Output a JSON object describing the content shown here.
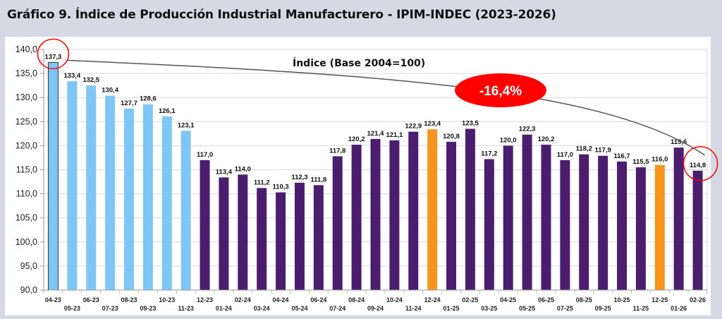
{
  "header": {
    "title": "Gráfico 9. Índice de Producción Industrial Manufacturero - IPIM-INDEC (2023-2026)"
  },
  "chart_data": {
    "type": "bar",
    "title": "Gráfico 9. Índice de Producción Industrial Manufacturero - IPIM-INDEC (2023-2026)",
    "subtitle": "Índice (Base 2004=100)",
    "xlabel": "",
    "ylabel": "",
    "ylim": [
      90,
      140
    ],
    "ytick_step": 5,
    "yticks": [
      "90,0",
      "95,0",
      "100,0",
      "105,0",
      "110,0",
      "115,0",
      "120,0",
      "125,0",
      "130,0",
      "135,0",
      "140,0"
    ],
    "grid": true,
    "categories": [
      "04-23",
      "05-23",
      "06-23",
      "07-23",
      "08-23",
      "09-23",
      "10-23",
      "11-23",
      "12-23",
      "01-24",
      "02-24",
      "03-24",
      "04-24",
      "05-24",
      "06-24",
      "07-24",
      "08-24",
      "09-24",
      "10-24",
      "11-24",
      "12-24",
      "01-25",
      "02-25",
      "03-25",
      "04-25",
      "05-25",
      "06-25",
      "07-25",
      "08-25",
      "09-25",
      "10-25",
      "11-25",
      "12-25",
      "01-26",
      "02-26"
    ],
    "values": [
      137.3,
      133.4,
      132.5,
      130.4,
      127.7,
      128.6,
      126.1,
      123.1,
      117.0,
      113.4,
      114.0,
      111.2,
      110.3,
      112.3,
      111.8,
      117.8,
      120.2,
      121.4,
      121.1,
      122.9,
      123.4,
      120.8,
      123.5,
      117.2,
      120.0,
      122.3,
      120.2,
      117.0,
      118.2,
      117.9,
      116.7,
      115.5,
      116.0,
      119.6,
      114.8
    ],
    "labels": [
      "137,3",
      "133,4",
      "132,5",
      "130,4",
      "127,7",
      "128,6",
      "126,1",
      "123,1",
      "117,0",
      "113,4",
      "114,0",
      "111,2",
      "110,3",
      "112,3",
      "111,8",
      "117,8",
      "120,2",
      "121,4",
      "121,1",
      "122,9",
      "123,4",
      "120,8",
      "123,5",
      "117,2",
      "120,0",
      "122,3",
      "120,2",
      "117,0",
      "118,2",
      "117,9",
      "116,7",
      "115,5",
      "116,0",
      "119,6",
      "114,8"
    ],
    "bar_groups": [
      "light",
      "light",
      "light",
      "light",
      "light",
      "light",
      "light",
      "light",
      "dark",
      "dark",
      "dark",
      "dark",
      "dark",
      "dark",
      "dark",
      "dark",
      "dark",
      "dark",
      "dark",
      "dark",
      "highlight",
      "dark",
      "dark",
      "dark",
      "dark",
      "dark",
      "dark",
      "dark",
      "dark",
      "dark",
      "dark",
      "dark",
      "highlight",
      "dark",
      "dark"
    ],
    "colors": {
      "light": "#7fc6f6",
      "dark": "#4b1d6e",
      "highlight": "#f7941d",
      "first_outline": "#333333",
      "annotation": "#ff0000",
      "trend_line": "#555555",
      "grid": "#d9d9d9"
    },
    "annotations": {
      "change_badge": "-16,4%",
      "circled_points": [
        "04-23",
        "02-26"
      ],
      "trend_line": {
        "from": "04-23",
        "to": "02-26"
      }
    }
  }
}
